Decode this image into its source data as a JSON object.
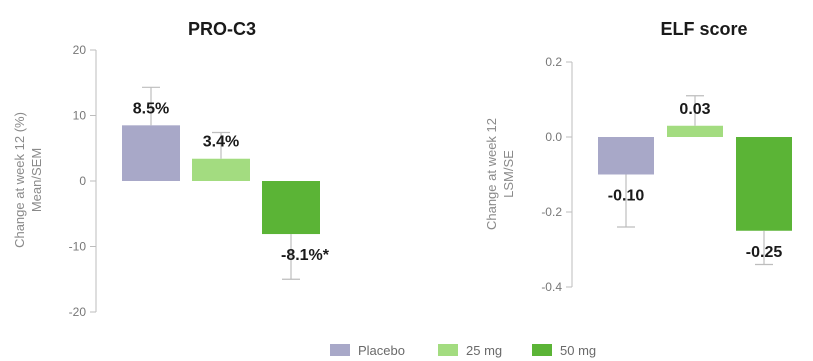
{
  "colors": {
    "placebo": "#a8a8c8",
    "mg25": "#a3dc80",
    "mg50": "#5bb436"
  },
  "legend": [
    {
      "name": "Placebo",
      "color": "#a8a8c8"
    },
    {
      "name": "25 mg",
      "color": "#a3dc80"
    },
    {
      "name": "50 mg",
      "color": "#5bb436"
    }
  ],
  "chart_data": [
    {
      "type": "bar",
      "title": "PRO-C3",
      "ylabel_line1": "Change at week 12 (%)",
      "ylabel_line2": "Mean/SEM",
      "categories": [
        "Placebo",
        "25 mg",
        "50 mg"
      ],
      "values": [
        8.5,
        3.4,
        -8.1
      ],
      "errors": [
        5.8,
        4.0,
        6.9
      ],
      "value_labels": [
        "8.5%",
        "3.4%",
        "-8.1%*"
      ],
      "ylim": [
        -20,
        20
      ],
      "yticks": [
        20,
        10,
        0,
        -10,
        -20
      ],
      "ytick_labels": [
        "20",
        "10",
        "0",
        "-10",
        "-20"
      ],
      "grid": false
    },
    {
      "type": "bar",
      "title": "ELF score",
      "ylabel_line1": "Change at week 12",
      "ylabel_line2": "LSM/SE",
      "categories": [
        "Placebo",
        "25 mg",
        "50 mg"
      ],
      "values": [
        -0.1,
        0.03,
        -0.25
      ],
      "errors": [
        0.14,
        0.08,
        0.09
      ],
      "value_labels": [
        "-0.10",
        "0.03",
        "-0.25"
      ],
      "ylim": [
        -0.4,
        0.2
      ],
      "yticks": [
        0.2,
        0.0,
        -0.2,
        -0.4
      ],
      "ytick_labels": [
        "0.2",
        "0.0",
        "-0.2",
        "-0.4"
      ],
      "grid": false
    }
  ]
}
